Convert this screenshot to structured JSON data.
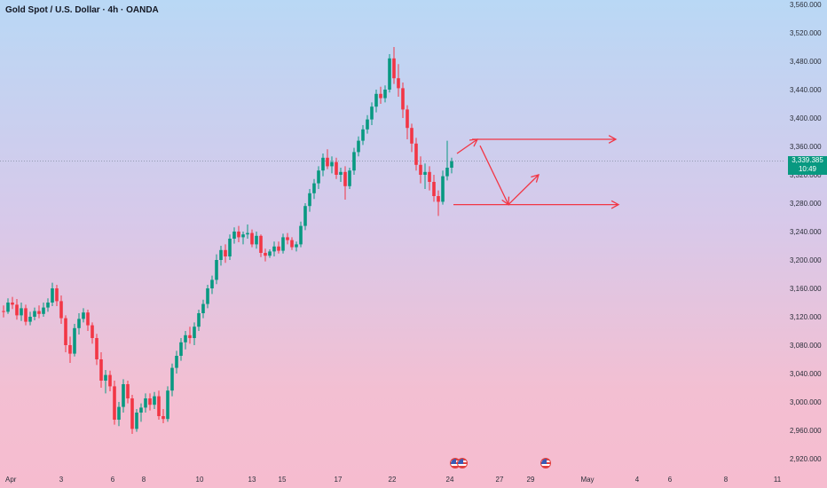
{
  "title": "Gold Spot / U.S. Dollar · 4h · OANDA",
  "current_price": {
    "value": "3,339.385",
    "countdown": "10:49"
  },
  "colors": {
    "up": "#089981",
    "down": "#f23645",
    "annotation": "#f23645",
    "price_line": "#5d6b7a"
  },
  "events": [
    {
      "icon": "us-flag-icon"
    },
    {
      "icon": "us-flag-icon"
    },
    {
      "icon": "us-flag-icon"
    }
  ],
  "chart_data": {
    "type": "candlestick",
    "title": "Gold Spot / U.S. Dollar · 4h · OANDA",
    "ylim": [
      2900,
      3560
    ],
    "y_ticks": [
      "3,560.000",
      "3,520.000",
      "3,480.000",
      "3,440.000",
      "3,400.000",
      "3,360.000",
      "3,320.000",
      "3,280.000",
      "3,240.000",
      "3,200.000",
      "3,160.000",
      "3,120.000",
      "3,080.000",
      "3,040.000",
      "3,000.000",
      "2,960.000",
      "2,920.000"
    ],
    "x_ticks": [
      "Apr",
      "3",
      "6",
      "8",
      "10",
      "13",
      "15",
      "17",
      "22",
      "24",
      "27",
      "29",
      "May",
      "4",
      "6",
      "8",
      "11"
    ],
    "series": [
      {
        "ohlc": [
          [
            3128,
            3136,
            3119,
            3127
          ],
          [
            3127,
            3146,
            3124,
            3140
          ],
          [
            3140,
            3148,
            3131,
            3137
          ],
          [
            3137,
            3145,
            3116,
            3122
          ],
          [
            3122,
            3140,
            3114,
            3132
          ],
          [
            3132,
            3137,
            3108,
            3113
          ],
          [
            3113,
            3127,
            3108,
            3120
          ],
          [
            3120,
            3133,
            3115,
            3128
          ],
          [
            3128,
            3136,
            3118,
            3124
          ],
          [
            3124,
            3140,
            3120,
            3133
          ],
          [
            3133,
            3146,
            3127,
            3140
          ],
          [
            3140,
            3168,
            3135,
            3160
          ],
          [
            3160,
            3165,
            3135,
            3142
          ],
          [
            3142,
            3150,
            3110,
            3118
          ],
          [
            3118,
            3122,
            3070,
            3080
          ],
          [
            3080,
            3092,
            3055,
            3068
          ],
          [
            3068,
            3110,
            3064,
            3104
          ],
          [
            3104,
            3125,
            3095,
            3117
          ],
          [
            3117,
            3132,
            3112,
            3126
          ],
          [
            3126,
            3130,
            3100,
            3108
          ],
          [
            3108,
            3112,
            3082,
            3090
          ],
          [
            3090,
            3096,
            3052,
            3060
          ],
          [
            3060,
            3070,
            3020,
            3030
          ],
          [
            3030,
            3045,
            3012,
            3038
          ],
          [
            3038,
            3044,
            3015,
            3022
          ],
          [
            3022,
            3030,
            2968,
            2975
          ],
          [
            2975,
            3000,
            2966,
            2993
          ],
          [
            2993,
            3032,
            2985,
            3025
          ],
          [
            3025,
            3030,
            2998,
            3005
          ],
          [
            3005,
            3010,
            2955,
            2962
          ],
          [
            2962,
            2990,
            2958,
            2985
          ],
          [
            2985,
            2998,
            2972,
            2992
          ],
          [
            2992,
            3012,
            2985,
            3005
          ],
          [
            3005,
            3012,
            2988,
            2996
          ],
          [
            2996,
            3014,
            2990,
            3008
          ],
          [
            3008,
            3016,
            2975,
            2980
          ],
          [
            2980,
            2990,
            2970,
            2976
          ],
          [
            2976,
            3022,
            2972,
            3016
          ],
          [
            3016,
            3054,
            3008,
            3048
          ],
          [
            3048,
            3072,
            3040,
            3065
          ],
          [
            3065,
            3090,
            3058,
            3084
          ],
          [
            3084,
            3100,
            3074,
            3094
          ],
          [
            3094,
            3106,
            3082,
            3090
          ],
          [
            3090,
            3112,
            3080,
            3106
          ],
          [
            3106,
            3130,
            3100,
            3125
          ],
          [
            3125,
            3144,
            3118,
            3138
          ],
          [
            3138,
            3165,
            3132,
            3160
          ],
          [
            3160,
            3178,
            3152,
            3172
          ],
          [
            3172,
            3208,
            3166,
            3200
          ],
          [
            3200,
            3220,
            3192,
            3214
          ],
          [
            3214,
            3222,
            3196,
            3205
          ],
          [
            3205,
            3236,
            3200,
            3230
          ],
          [
            3230,
            3246,
            3223,
            3240
          ],
          [
            3240,
            3248,
            3225,
            3232
          ],
          [
            3232,
            3240,
            3222,
            3236
          ],
          [
            3236,
            3250,
            3230,
            3238
          ],
          [
            3238,
            3243,
            3218,
            3222
          ],
          [
            3222,
            3240,
            3216,
            3234
          ],
          [
            3234,
            3236,
            3204,
            3210
          ],
          [
            3210,
            3216,
            3198,
            3206
          ],
          [
            3206,
            3215,
            3203,
            3212
          ],
          [
            3212,
            3226,
            3205,
            3219
          ],
          [
            3219,
            3226,
            3209,
            3213
          ],
          [
            3213,
            3237,
            3209,
            3232
          ],
          [
            3232,
            3238,
            3222,
            3228
          ],
          [
            3228,
            3232,
            3214,
            3218
          ],
          [
            3218,
            3226,
            3212,
            3222
          ],
          [
            3222,
            3254,
            3218,
            3248
          ],
          [
            3248,
            3280,
            3242,
            3276
          ],
          [
            3276,
            3300,
            3268,
            3294
          ],
          [
            3294,
            3314,
            3286,
            3308
          ],
          [
            3308,
            3332,
            3300,
            3326
          ],
          [
            3326,
            3350,
            3318,
            3344
          ],
          [
            3344,
            3356,
            3328,
            3332
          ],
          [
            3332,
            3346,
            3322,
            3338
          ],
          [
            3338,
            3344,
            3314,
            3320
          ],
          [
            3320,
            3330,
            3310,
            3324
          ],
          [
            3324,
            3332,
            3285,
            3304
          ],
          [
            3304,
            3330,
            3300,
            3326
          ],
          [
            3326,
            3358,
            3320,
            3352
          ],
          [
            3352,
            3374,
            3346,
            3368
          ],
          [
            3368,
            3390,
            3362,
            3384
          ],
          [
            3384,
            3404,
            3378,
            3398
          ],
          [
            3398,
            3422,
            3390,
            3416
          ],
          [
            3416,
            3440,
            3408,
            3434
          ],
          [
            3434,
            3444,
            3420,
            3428
          ],
          [
            3428,
            3446,
            3422,
            3440
          ],
          [
            3440,
            3490,
            3436,
            3484
          ],
          [
            3484,
            3500,
            3448,
            3456
          ],
          [
            3456,
            3476,
            3430,
            3442
          ],
          [
            3442,
            3450,
            3400,
            3412
          ],
          [
            3412,
            3418,
            3370,
            3386
          ],
          [
            3386,
            3392,
            3352,
            3364
          ],
          [
            3364,
            3372,
            3326,
            3334
          ],
          [
            3334,
            3346,
            3308,
            3320
          ],
          [
            3320,
            3336,
            3300,
            3324
          ],
          [
            3324,
            3332,
            3298,
            3310
          ],
          [
            3310,
            3320,
            3282,
            3290
          ],
          [
            3290,
            3298,
            3262,
            3282
          ],
          [
            3282,
            3326,
            3278,
            3318
          ],
          [
            3318,
            3368,
            3312,
            3330
          ],
          [
            3330,
            3344,
            3322,
            3339
          ]
        ]
      }
    ],
    "annotations": [
      {
        "type": "horizontal-ray",
        "price": 3370
      },
      {
        "type": "horizontal-ray",
        "price": 3278
      },
      {
        "type": "path-arrow",
        "points": [
          [
            3322,
            3350
          ],
          [
            3316,
            3370
          ],
          [
            3326,
            3361
          ],
          [
            3340,
            3278
          ],
          [
            3346,
            3320
          ]
        ]
      }
    ]
  }
}
